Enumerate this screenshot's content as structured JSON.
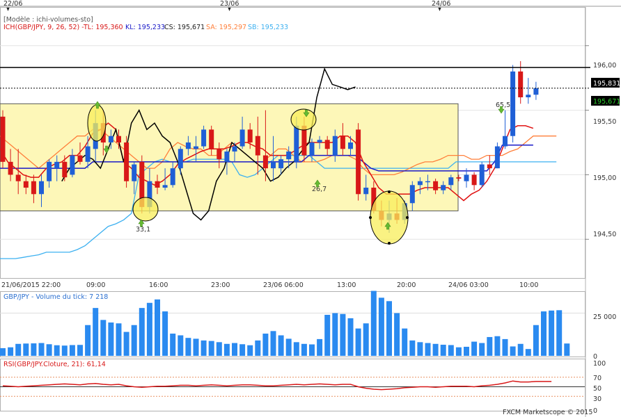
{
  "header": {
    "template": "[Modèle : ichi-volumes-sto]",
    "indicator": "ICH(GBP/JPY, 9, 26, 52) -",
    "tl_label": "TL: 195,360",
    "kl_label": "KL: 195,233",
    "cs_label": "CS: 195,671",
    "sa_label": "SA: 195,297",
    "sb_label": "SB: 195,233"
  },
  "date_markers": [
    "22/06",
    "23/06",
    "24/06"
  ],
  "time_axis": [
    "21/06/2015 22:00",
    "09:00",
    "16:00",
    "23:00",
    "23/06 06:00",
    "13:00",
    "20:00",
    "24/06 03:00",
    "10:00"
  ],
  "price_axis": [
    "196,00",
    "195,50",
    "195,00",
    "194,50"
  ],
  "price_boxes": {
    "resistance": "195,831",
    "current": "195,671"
  },
  "annotations": [
    "33,1",
    "26,7",
    "65,5"
  ],
  "volume_panel": {
    "title": "GBP/JPY - Volume du tick: 7 218",
    "axis": [
      "25 000",
      "0"
    ]
  },
  "rsi_panel": {
    "title": "RSI(GBP/JPY.Cloture, 21): 61,14",
    "axis": [
      "100",
      "70",
      "50",
      "30",
      "0"
    ]
  },
  "footer": "FXCM Marketscope © 2015",
  "colors": {
    "bull": "#1f5fd6",
    "bear": "#d81818",
    "tenkan": "#e01010",
    "kijun": "#1818c8",
    "chikou": "#000000",
    "senkou_a": "#ff7f3a",
    "senkou_b": "#3cb0f0",
    "volume": "#2a8af0",
    "rsi": "#d81818",
    "zone": "#fdf7b8",
    "highlight": "#f8ee5a"
  },
  "chart_data": [
    {
      "type": "candlestick",
      "title": "ICH(GBP/JPY, 9, 26, 52)",
      "x_labels": [
        "21/06/2015 22:00",
        "09:00",
        "16:00",
        "23:00",
        "23/06 06:00",
        "13:00",
        "20:00",
        "24/06 03:00",
        "10:00"
      ],
      "ylim": [
        194.2,
        196.3
      ],
      "candles": [
        {
          "o": 195.45,
          "h": 195.5,
          "l": 195.05,
          "c": 195.1
        },
        {
          "o": 195.1,
          "h": 195.2,
          "l": 194.95,
          "c": 195.0
        },
        {
          "o": 195.0,
          "h": 195.2,
          "l": 194.85,
          "c": 194.95
        },
        {
          "o": 194.95,
          "h": 195.0,
          "l": 194.85,
          "c": 194.9
        },
        {
          "o": 194.95,
          "h": 195.0,
          "l": 194.78,
          "c": 194.85
        },
        {
          "o": 194.85,
          "h": 195.0,
          "l": 194.75,
          "c": 194.95
        },
        {
          "o": 194.95,
          "h": 195.12,
          "l": 194.9,
          "c": 195.1
        },
        {
          "o": 195.05,
          "h": 195.15,
          "l": 194.95,
          "c": 195.1
        },
        {
          "o": 195.1,
          "h": 195.15,
          "l": 194.95,
          "c": 194.98
        },
        {
          "o": 195.0,
          "h": 195.2,
          "l": 194.98,
          "c": 195.15
        },
        {
          "o": 195.15,
          "h": 195.25,
          "l": 195.08,
          "c": 195.1
        },
        {
          "o": 195.1,
          "h": 195.3,
          "l": 195.05,
          "c": 195.22
        },
        {
          "o": 195.2,
          "h": 195.5,
          "l": 195.1,
          "c": 195.4
        },
        {
          "o": 195.4,
          "h": 195.5,
          "l": 195.15,
          "c": 195.25
        },
        {
          "o": 195.25,
          "h": 195.35,
          "l": 195.2,
          "c": 195.3
        },
        {
          "o": 195.3,
          "h": 195.35,
          "l": 195.2,
          "c": 195.25
        },
        {
          "o": 195.25,
          "h": 195.3,
          "l": 194.9,
          "c": 194.95
        },
        {
          "o": 194.95,
          "h": 195.1,
          "l": 194.85,
          "c": 195.08
        },
        {
          "o": 195.1,
          "h": 195.15,
          "l": 194.7,
          "c": 194.75
        },
        {
          "o": 194.75,
          "h": 195.05,
          "l": 194.7,
          "c": 194.95
        },
        {
          "o": 194.95,
          "h": 195.0,
          "l": 194.85,
          "c": 194.9
        },
        {
          "o": 194.9,
          "h": 195.05,
          "l": 194.88,
          "c": 194.92
        },
        {
          "o": 194.92,
          "h": 195.1,
          "l": 194.9,
          "c": 195.05
        },
        {
          "o": 195.05,
          "h": 195.22,
          "l": 195.0,
          "c": 195.2
        },
        {
          "o": 195.2,
          "h": 195.3,
          "l": 195.15,
          "c": 195.25
        },
        {
          "o": 195.2,
          "h": 195.3,
          "l": 195.1,
          "c": 195.22
        },
        {
          "o": 195.22,
          "h": 195.38,
          "l": 195.2,
          "c": 195.35
        },
        {
          "o": 195.35,
          "h": 195.38,
          "l": 195.15,
          "c": 195.2
        },
        {
          "o": 195.2,
          "h": 195.25,
          "l": 195.05,
          "c": 195.12
        },
        {
          "o": 195.1,
          "h": 195.2,
          "l": 195.0,
          "c": 195.18
        },
        {
          "o": 195.18,
          "h": 195.25,
          "l": 195.1,
          "c": 195.22
        },
        {
          "o": 195.22,
          "h": 195.45,
          "l": 195.2,
          "c": 195.35
        },
        {
          "o": 195.35,
          "h": 195.4,
          "l": 195.2,
          "c": 195.25
        },
        {
          "o": 195.3,
          "h": 195.45,
          "l": 195.0,
          "c": 195.15
        },
        {
          "o": 195.15,
          "h": 195.5,
          "l": 194.95,
          "c": 195.05
        },
        {
          "o": 195.05,
          "h": 195.3,
          "l": 194.95,
          "c": 195.1
        },
        {
          "o": 195.05,
          "h": 195.15,
          "l": 195.0,
          "c": 195.12
        },
        {
          "o": 195.12,
          "h": 195.22,
          "l": 195.05,
          "c": 195.18
        },
        {
          "o": 195.1,
          "h": 195.45,
          "l": 195.05,
          "c": 195.38
        },
        {
          "o": 195.38,
          "h": 195.45,
          "l": 195.1,
          "c": 195.15
        },
        {
          "o": 195.15,
          "h": 195.28,
          "l": 195.1,
          "c": 195.25
        },
        {
          "o": 195.25,
          "h": 195.3,
          "l": 195.2,
          "c": 195.27
        },
        {
          "o": 195.27,
          "h": 195.3,
          "l": 195.15,
          "c": 195.2
        },
        {
          "o": 195.15,
          "h": 195.35,
          "l": 195.1,
          "c": 195.3
        },
        {
          "o": 195.3,
          "h": 195.4,
          "l": 195.15,
          "c": 195.2
        },
        {
          "o": 195.2,
          "h": 195.3,
          "l": 195.15,
          "c": 195.25
        },
        {
          "o": 195.35,
          "h": 195.4,
          "l": 194.8,
          "c": 194.85
        },
        {
          "o": 194.85,
          "h": 195.0,
          "l": 194.8,
          "c": 194.9
        },
        {
          "o": 194.9,
          "h": 194.95,
          "l": 194.7,
          "c": 194.72
        },
        {
          "o": 194.72,
          "h": 194.8,
          "l": 194.6,
          "c": 194.65
        },
        {
          "o": 194.65,
          "h": 194.8,
          "l": 194.55,
          "c": 194.7
        },
        {
          "o": 194.7,
          "h": 194.82,
          "l": 194.62,
          "c": 194.65
        },
        {
          "o": 194.65,
          "h": 194.8,
          "l": 194.62,
          "c": 194.78
        },
        {
          "o": 194.78,
          "h": 194.95,
          "l": 194.72,
          "c": 194.92
        },
        {
          "o": 194.92,
          "h": 194.98,
          "l": 194.85,
          "c": 194.95
        },
        {
          "o": 194.95,
          "h": 195.0,
          "l": 194.88,
          "c": 194.95
        },
        {
          "o": 194.95,
          "h": 194.97,
          "l": 194.85,
          "c": 194.88
        },
        {
          "o": 194.88,
          "h": 194.95,
          "l": 194.85,
          "c": 194.92
        },
        {
          "o": 194.92,
          "h": 195.0,
          "l": 194.88,
          "c": 194.98
        },
        {
          "o": 194.98,
          "h": 195.0,
          "l": 194.95,
          "c": 194.97
        },
        {
          "o": 194.95,
          "h": 195.05,
          "l": 194.9,
          "c": 195.0
        },
        {
          "o": 195.0,
          "h": 195.02,
          "l": 194.88,
          "c": 194.92
        },
        {
          "o": 194.92,
          "h": 195.1,
          "l": 194.9,
          "c": 195.08
        },
        {
          "o": 195.08,
          "h": 195.15,
          "l": 195.0,
          "c": 195.05
        },
        {
          "o": 195.05,
          "h": 195.25,
          "l": 195.05,
          "c": 195.22
        },
        {
          "o": 195.22,
          "h": 195.5,
          "l": 195.2,
          "c": 195.3
        },
        {
          "o": 195.3,
          "h": 195.85,
          "l": 195.25,
          "c": 195.8
        },
        {
          "o": 195.8,
          "h": 195.88,
          "l": 195.55,
          "c": 195.6
        },
        {
          "o": 195.6,
          "h": 195.75,
          "l": 195.55,
          "c": 195.62
        },
        {
          "o": 195.62,
          "h": 195.72,
          "l": 195.58,
          "c": 195.67
        }
      ],
      "tenkan": [
        195.2,
        195.1,
        195.05,
        195.0,
        194.98,
        194.98,
        195.05,
        195.08,
        195.1,
        195.15,
        195.15,
        195.22,
        195.32,
        195.35,
        195.4,
        195.35,
        195.1,
        195.05,
        194.98,
        194.95,
        194.92,
        194.95,
        195.0,
        195.08,
        195.12,
        195.15,
        195.18,
        195.2,
        195.2,
        195.2,
        195.22,
        195.25,
        195.25,
        195.22,
        195.2,
        195.15,
        195.15,
        195.15,
        195.18,
        195.22,
        195.25,
        195.25,
        195.25,
        195.25,
        195.3,
        195.3,
        195.25,
        195.1,
        195.0,
        194.9,
        194.85,
        194.85,
        194.85,
        194.85,
        194.88,
        194.9,
        194.9,
        194.9,
        194.9,
        194.85,
        194.8,
        194.85,
        194.88,
        194.95,
        195.05,
        195.2,
        195.35,
        195.38,
        195.38,
        195.36
      ],
      "kijun": [
        195.05,
        195.05,
        195.05,
        195.05,
        195.05,
        195.05,
        195.05,
        195.05,
        195.05,
        195.05,
        195.05,
        195.05,
        195.1,
        195.1,
        195.1,
        195.1,
        195.1,
        195.1,
        195.1,
        195.1,
        195.1,
        195.1,
        195.1,
        195.1,
        195.1,
        195.1,
        195.1,
        195.1,
        195.1,
        195.1,
        195.1,
        195.1,
        195.1,
        195.1,
        195.1,
        195.1,
        195.1,
        195.1,
        195.1,
        195.1,
        195.15,
        195.15,
        195.15,
        195.15,
        195.15,
        195.15,
        195.15,
        195.1,
        195.05,
        195.03,
        195.03,
        195.03,
        195.03,
        195.03,
        195.03,
        195.03,
        195.03,
        195.03,
        195.03,
        195.03,
        195.03,
        195.03,
        195.03,
        195.03,
        195.1,
        195.23,
        195.23,
        195.23,
        195.23,
        195.23
      ],
      "chikou": [
        194.95,
        195.05,
        195.1,
        195.15,
        195.12,
        195.05,
        195.2,
        195.35,
        195.1,
        195.4,
        195.5,
        195.35,
        195.4,
        195.3,
        195.25,
        195.1,
        194.9,
        194.7,
        194.65,
        194.72,
        194.95,
        195.05,
        195.25,
        195.2,
        195.15,
        195.1,
        195.05,
        194.95,
        194.98,
        195.05,
        195.1,
        195.18,
        195.25,
        195.6,
        195.82,
        195.7,
        195.68,
        195.66,
        195.68
      ],
      "senkou_a": [
        195.3,
        195.25,
        195.2,
        195.15,
        195.1,
        195.05,
        195.1,
        195.15,
        195.2,
        195.25,
        195.3,
        195.3,
        195.35,
        195.35,
        195.3,
        195.25,
        195.2,
        195.15,
        195.1,
        195.05,
        195.05,
        195.1,
        195.2,
        195.25,
        195.22,
        195.2,
        195.2,
        195.15,
        195.15,
        195.2,
        195.25,
        195.2,
        195.15,
        195.1,
        195.1,
        195.15,
        195.2,
        195.2,
        195.15,
        195.1,
        195.1,
        195.1,
        195.12,
        195.15,
        195.15,
        195.15,
        195.12,
        195.05,
        195.0,
        195.0,
        195.0,
        195.0,
        195.02,
        195.05,
        195.08,
        195.1,
        195.1,
        195.12,
        195.15,
        195.15,
        195.15,
        195.12,
        195.12,
        195.15,
        195.15,
        195.15,
        195.18,
        195.2,
        195.25,
        195.3,
        195.3,
        195.3,
        195.3
      ],
      "senkou_b": [
        194.35,
        194.35,
        194.35,
        194.36,
        194.37,
        194.38,
        194.4,
        194.4,
        194.4,
        194.4,
        194.42,
        194.45,
        194.5,
        194.55,
        194.6,
        194.62,
        194.65,
        194.7,
        195.0,
        195.05,
        195.1,
        195.12,
        195.1,
        195.1,
        195.1,
        195.12,
        195.12,
        195.12,
        195.12,
        195.12,
        195.1,
        195.0,
        194.98,
        195.0,
        195.05,
        195.1,
        195.15,
        195.15,
        195.15,
        195.15,
        195.15,
        195.1,
        195.05,
        195.05,
        195.05,
        195.05,
        195.05,
        195.05,
        195.05,
        195.05,
        195.05,
        195.05,
        195.05,
        195.05,
        195.05,
        195.05,
        195.05,
        195.05,
        195.05,
        195.1,
        195.1,
        195.1,
        195.1,
        195.1,
        195.1,
        195.1,
        195.1,
        195.1,
        195.1,
        195.1,
        195.1,
        195.1,
        195.1
      ],
      "resistance": 195.831,
      "current": 195.671,
      "zone": [
        194.72,
        195.55
      ]
    },
    {
      "type": "bar",
      "title": "GBP/JPY - Volume du tick: 7 218",
      "ylim": [
        0,
        37000
      ],
      "values": [
        4500,
        5000,
        7000,
        7200,
        7300,
        7500,
        6800,
        6200,
        6000,
        6300,
        6400,
        18000,
        28000,
        21000,
        19500,
        19000,
        14000,
        18000,
        28000,
        31000,
        33000,
        26000,
        13000,
        12000,
        10500,
        10000,
        9000,
        8700,
        8000,
        7000,
        7500,
        6800,
        6200,
        9000,
        13000,
        14500,
        12000,
        10000,
        8000,
        7000,
        6700,
        9800,
        24000,
        25000,
        24500,
        22000,
        16000,
        19000,
        38000,
        34000,
        32000,
        25000,
        16000,
        9000,
        8000,
        7500,
        7000,
        6500,
        6300,
        5000,
        5300,
        8300,
        7500,
        11000,
        11500,
        9800,
        5500,
        7000,
        4000,
        18000,
        26000,
        26500,
        26700,
        7218
      ]
    },
    {
      "type": "line",
      "title": "RSI(GBP/JPY.Cloture, 21): 61,14",
      "ylim": [
        0,
        100
      ],
      "levels": [
        30,
        50,
        70
      ],
      "values": [
        52,
        51,
        50,
        51,
        52,
        53,
        54,
        55,
        56,
        55,
        54,
        56,
        57,
        55,
        54,
        55,
        52,
        50,
        49,
        50,
        51,
        51,
        52,
        53,
        53,
        52,
        53,
        54,
        53,
        52,
        53,
        54,
        54,
        53,
        52,
        52,
        53,
        54,
        55,
        54,
        55,
        56,
        55,
        54,
        55,
        55,
        50,
        47,
        45,
        44,
        45,
        46,
        48,
        49,
        50,
        50,
        49,
        50,
        51,
        51,
        51,
        50,
        52,
        53,
        55,
        58,
        62,
        60,
        60,
        61,
        61,
        61
      ]
    }
  ]
}
